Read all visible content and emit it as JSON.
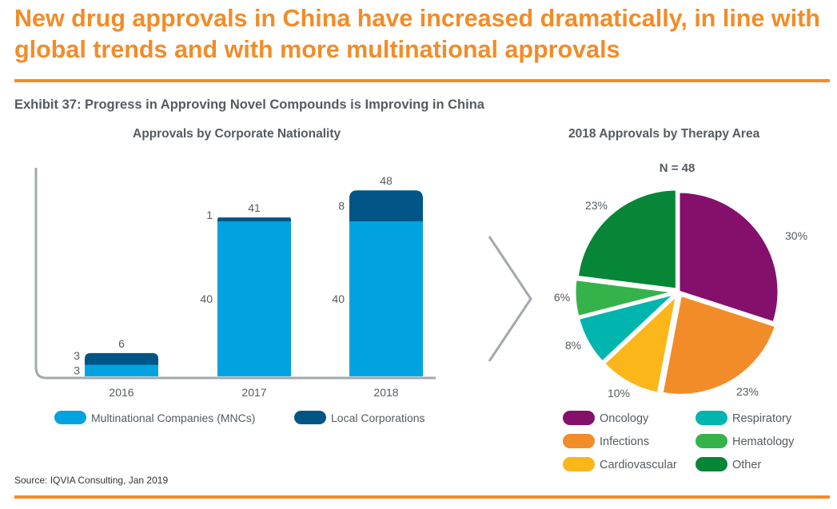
{
  "headline": "New drug approvals in China have increased dramatically, in line with global trends and with more multinational approvals",
  "exhibit_title": "Exhibit 37: Progress in Approving Novel Compounds is Improving in China",
  "source": "Source: IQVIA Consulting, Jan 2019",
  "colors": {
    "orange": "#f28c28",
    "mnc": "#00a3e0",
    "local": "#005587",
    "oncology": "#84106c",
    "infections": "#f28c28",
    "cardiovascular": "#fbb61a",
    "respiratory": "#00b5ad",
    "hematology": "#35b34a",
    "other": "#068636"
  },
  "chart_data": [
    {
      "type": "bar",
      "title": "Approvals by Corporate Nationality",
      "categories": [
        "2016",
        "2017",
        "2018"
      ],
      "series": [
        {
          "name": "Multinational Companies (MNCs)",
          "values": [
            3,
            40,
            40
          ],
          "labels": [
            "3",
            "40",
            "40"
          ],
          "color_key": "mnc"
        },
        {
          "name": "Local Corporations",
          "values": [
            3,
            1,
            8
          ],
          "labels": [
            "3",
            "1",
            "8"
          ],
          "color_key": "local"
        }
      ],
      "totals": [
        6,
        41,
        48
      ],
      "total_labels": [
        "6",
        "41",
        "48"
      ],
      "ylim": [
        0,
        60
      ]
    },
    {
      "type": "pie",
      "title": "2018 Approvals by Therapy Area",
      "subtitle": "N = 48",
      "slices": [
        {
          "name": "Oncology",
          "value": 30,
          "label": "30%",
          "color_key": "oncology"
        },
        {
          "name": "Infections",
          "value": 23,
          "label": "23%",
          "color_key": "infections"
        },
        {
          "name": "Cardiovascular",
          "value": 10,
          "label": "10%",
          "color_key": "cardiovascular"
        },
        {
          "name": "Respiratory",
          "value": 8,
          "label": "8%",
          "color_key": "respiratory"
        },
        {
          "name": "Hematology",
          "value": 6,
          "label": "6%",
          "color_key": "hematology"
        },
        {
          "name": "Other",
          "value": 23,
          "label": "23%",
          "color_key": "other"
        }
      ]
    }
  ]
}
